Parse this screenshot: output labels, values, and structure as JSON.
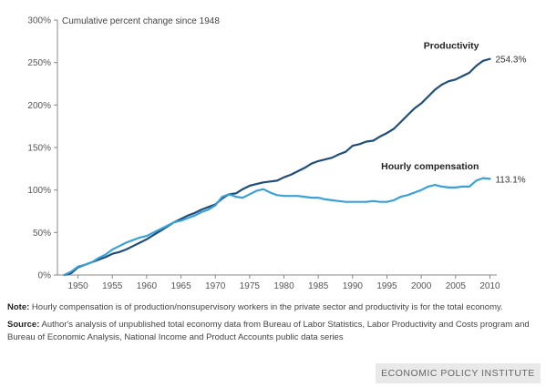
{
  "chart_data": {
    "type": "line",
    "annotation": "Cumulative percent change since 1948",
    "ylim": [
      0,
      300
    ],
    "xlim": [
      1947,
      2011
    ],
    "y_ticks": [
      0,
      50,
      100,
      150,
      200,
      250,
      300
    ],
    "y_tick_labels": [
      "0%",
      "50%",
      "100%",
      "150%",
      "200%",
      "250%",
      "300%"
    ],
    "x_ticks": [
      1950,
      1955,
      1960,
      1965,
      1970,
      1975,
      1980,
      1985,
      1990,
      1995,
      2000,
      2005,
      2010
    ],
    "x_tick_labels": [
      "1950",
      "1955",
      "1960",
      "1965",
      "1970",
      "1975",
      "1980",
      "1985",
      "1990",
      "1995",
      "2000",
      "2005",
      "2010"
    ],
    "x": [
      1948,
      1949,
      1950,
      1951,
      1952,
      1953,
      1954,
      1955,
      1956,
      1957,
      1958,
      1959,
      1960,
      1961,
      1962,
      1963,
      1964,
      1965,
      1966,
      1967,
      1968,
      1969,
      1970,
      1971,
      1972,
      1973,
      1974,
      1975,
      1976,
      1977,
      1978,
      1979,
      1980,
      1981,
      1982,
      1983,
      1984,
      1985,
      1986,
      1987,
      1988,
      1989,
      1990,
      1991,
      1992,
      1993,
      1994,
      1995,
      1996,
      1997,
      1998,
      1999,
      2000,
      2001,
      2002,
      2003,
      2004,
      2005,
      2006,
      2007,
      2008,
      2009,
      2010
    ],
    "series": [
      {
        "name": "Productivity",
        "color": "#1f4e79",
        "end_label": "254.3%",
        "values": [
          0,
          2,
          9,
          12,
          15,
          18,
          21,
          25,
          27,
          30,
          34,
          38,
          42,
          47,
          52,
          57,
          62,
          66,
          70,
          73,
          77,
          80,
          83,
          90,
          95,
          96,
          101,
          105,
          107,
          109,
          110,
          111,
          115,
          118,
          122,
          126,
          131,
          134,
          136,
          138,
          142,
          145,
          152,
          154,
          157,
          158,
          163,
          167,
          172,
          180,
          188,
          196,
          202,
          210,
          218,
          224,
          228,
          230,
          234,
          238,
          246,
          252,
          254.3
        ]
      },
      {
        "name": "Hourly compensation",
        "color": "#3aa0d8",
        "end_label": "113.1%",
        "values": [
          0,
          4,
          10,
          12,
          15,
          20,
          24,
          30,
          34,
          38,
          41,
          44,
          46,
          50,
          54,
          58,
          62,
          64,
          67,
          70,
          74,
          77,
          82,
          92,
          95,
          92,
          91,
          95,
          99,
          101,
          97,
          94,
          93,
          93,
          93,
          92,
          91,
          91,
          89,
          88,
          87,
          86,
          86,
          86,
          86,
          87,
          86,
          86,
          88,
          92,
          94,
          97,
          100,
          104,
          106,
          104,
          103,
          103,
          104,
          104,
          111,
          114,
          113.1
        ]
      }
    ],
    "grid": false,
    "legend": "inline labels"
  },
  "notes": {
    "note_label": "Note:",
    "note_text": "Hourly compensation is of production/nonsupervisory workers in the private sector and productivity is for the total economy.",
    "source_label": "Source:",
    "source_text": "Author's analysis of unpublished total economy data from Bureau of Labor Statistics, Labor Productivity and Costs program and Bureau of Economic Analysis, National Income and Product Accounts public data series"
  },
  "brand": "ECONOMIC POLICY INSTITUTE"
}
